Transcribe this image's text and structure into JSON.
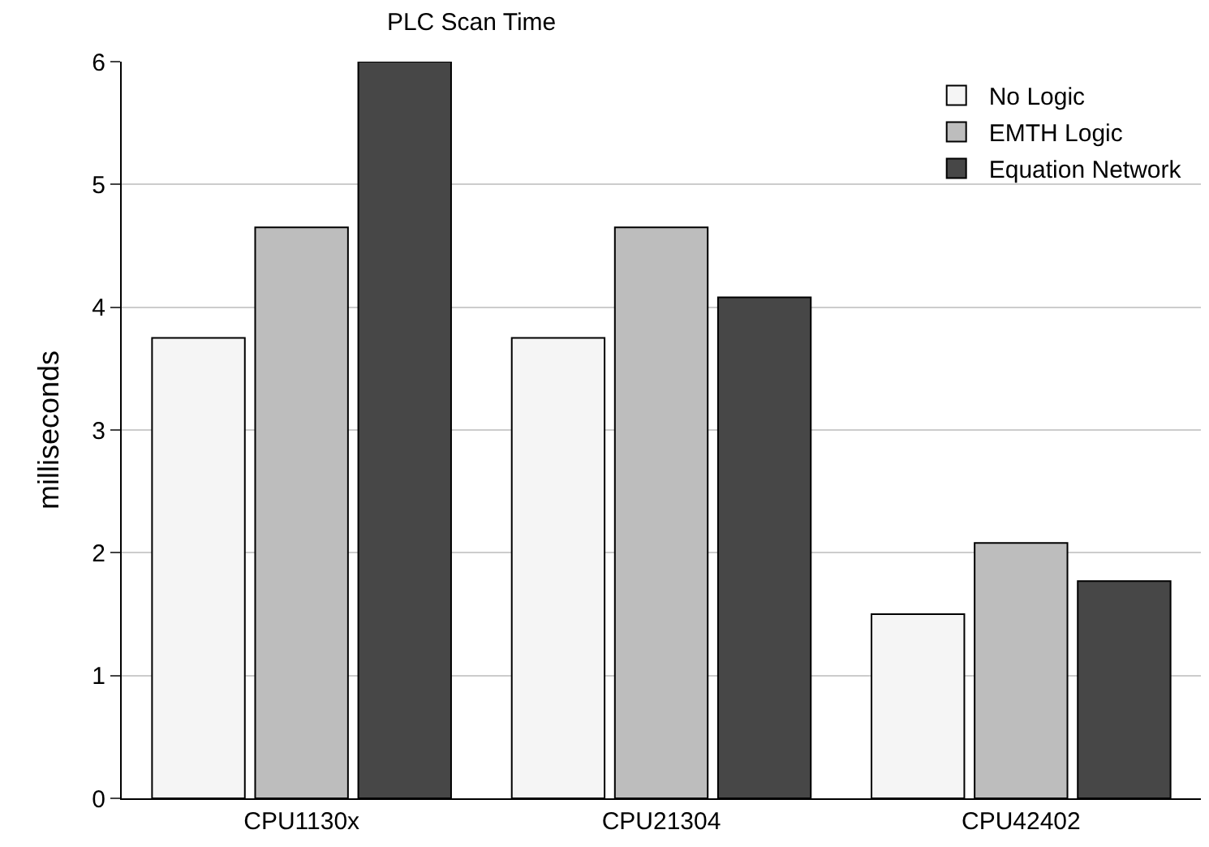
{
  "chart_data": {
    "type": "bar",
    "title": "PLC Scan Time",
    "ylabel": "milliseconds",
    "categories": [
      "CPU1130x",
      "CPU21304",
      "CPU42402"
    ],
    "series": [
      {
        "name": "No Logic",
        "color": "#f5f5f5",
        "values": [
          3.75,
          3.75,
          1.5
        ]
      },
      {
        "name": "EMTH Logic",
        "color": "#bdbdbd",
        "values": [
          4.65,
          4.65,
          2.08
        ]
      },
      {
        "name": "Equation Network",
        "color": "#474747",
        "values": [
          6,
          4.08,
          1.77
        ]
      }
    ],
    "ylim": [
      0,
      6
    ],
    "yticks": [
      0,
      1,
      2,
      3,
      4,
      5,
      6
    ],
    "grid": "y",
    "legend": "top right"
  }
}
